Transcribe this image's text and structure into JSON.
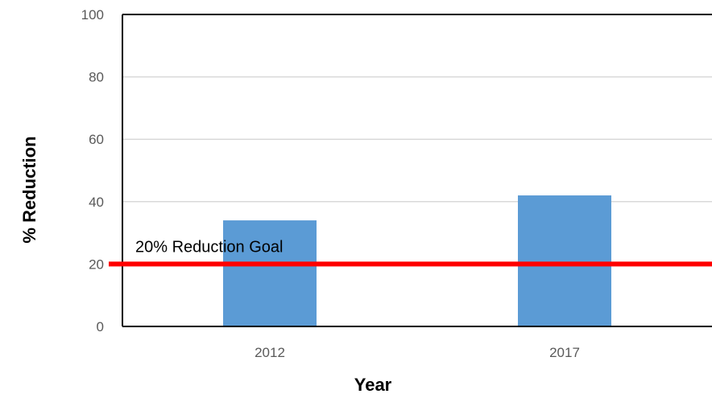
{
  "chart_data": {
    "type": "bar",
    "title": "",
    "xlabel": "Year",
    "ylabel": "% Reduction",
    "categories": [
      "2012",
      "2017"
    ],
    "values": [
      34,
      42
    ],
    "ylim": [
      0,
      100
    ],
    "yticks": [
      "0",
      "20",
      "40",
      "60",
      "80",
      "100"
    ],
    "grid": true,
    "bar_color": "#5B9BD5",
    "reference_line": {
      "value": 20,
      "label": "20% Reduction Goal",
      "color": "#FF0000"
    }
  }
}
